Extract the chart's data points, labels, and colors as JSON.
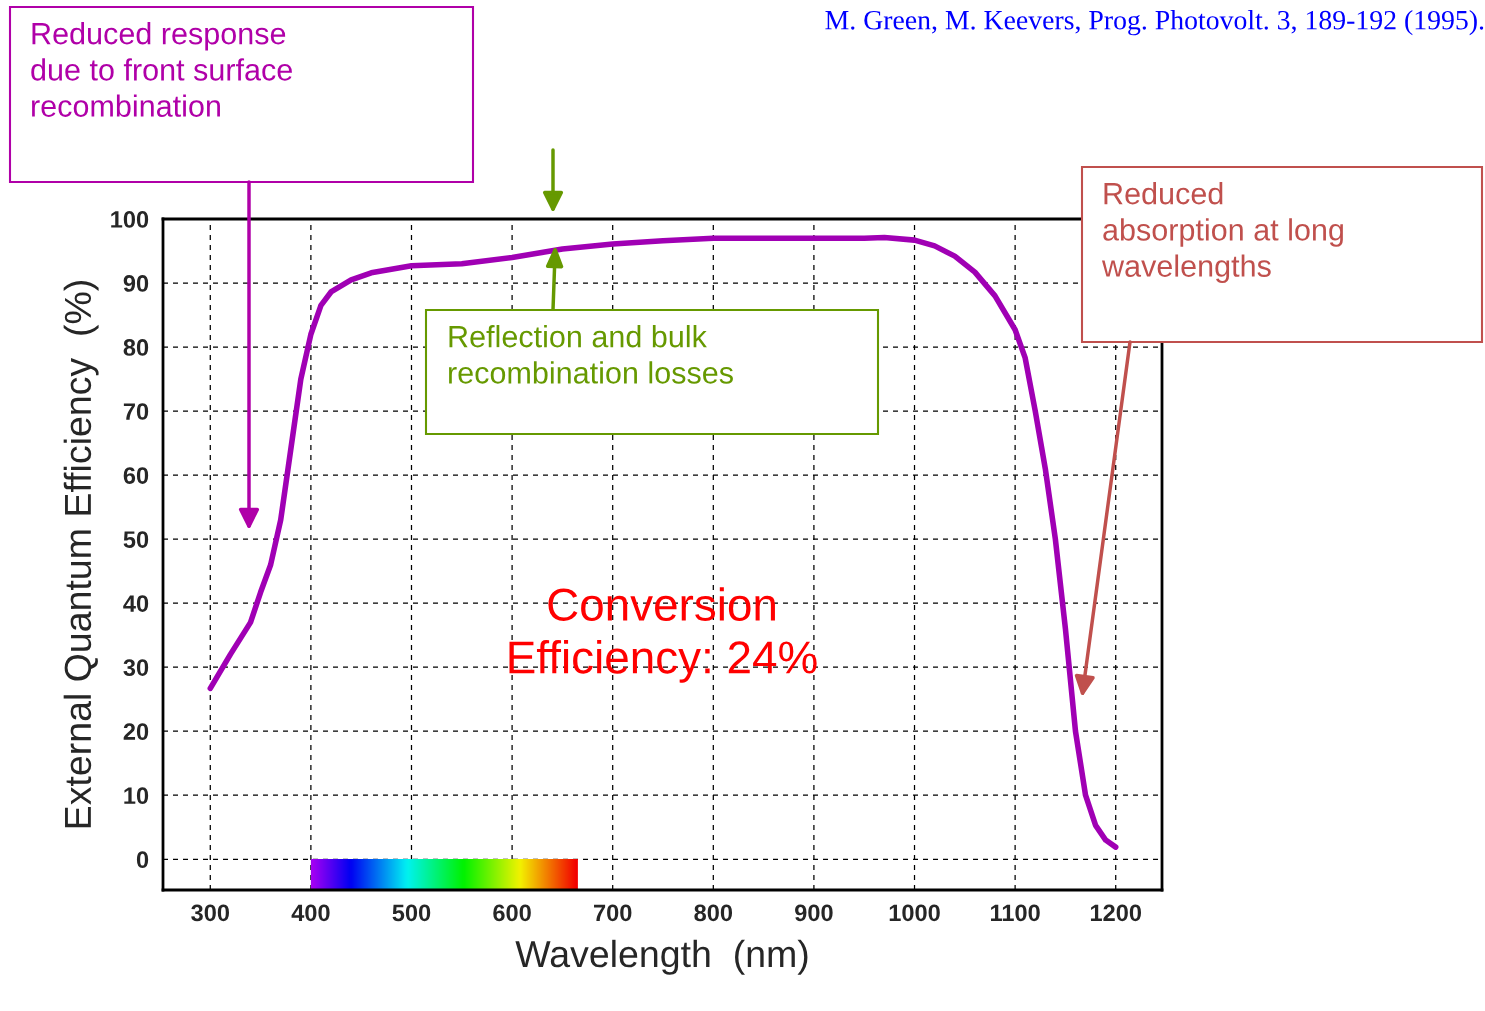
{
  "chart_data": {
    "type": "line",
    "xlabel": "Wavelength  (nm)",
    "ylabel": "External Quantum Efficiency  (%)",
    "xlim": [
      253,
      1246
    ],
    "ylim": [
      -4.8,
      100
    ],
    "xticks": [
      300,
      400,
      500,
      600,
      700,
      800,
      900,
      1000,
      1100,
      1200
    ],
    "yticks": [
      0,
      10,
      20,
      30,
      40,
      50,
      60,
      70,
      80,
      90,
      100
    ],
    "grid": true,
    "line_style": "solid",
    "marker": "none",
    "series": [
      {
        "color": "#a000b4",
        "x": [
          300,
          320,
          340,
          350,
          360,
          370,
          380,
          390,
          400,
          410,
          420,
          440,
          460,
          500,
          550,
          600,
          650,
          700,
          750,
          800,
          850,
          900,
          950,
          970,
          1000,
          1020,
          1040,
          1060,
          1080,
          1100,
          1110,
          1120,
          1130,
          1140,
          1150,
          1160,
          1170,
          1180,
          1190,
          1200
        ],
        "values": [
          26.7,
          32,
          37,
          41.7,
          46,
          53,
          64,
          75,
          82,
          86.5,
          88.6,
          90.5,
          91.6,
          92.7,
          93,
          94,
          95.3,
          96.1,
          96.6,
          97,
          97,
          97,
          97,
          97.1,
          96.7,
          95.8,
          94.2,
          91.7,
          88,
          82.7,
          78.3,
          70,
          61,
          50,
          36,
          20,
          10,
          5.3,
          3,
          1.9
        ]
      }
    ],
    "annotations": [
      "Reduced response\ndue to front surface\nrecombination",
      {
        "text": "Reflection and bulk\nrecombination losses",
        "x": 643,
        "y": 95.9
      },
      "Reduced\nabsorption at long\nwavelengths",
      "Conversion\nEfficiency: 24%",
      "M. Green, M. Keevers, Prog. Photovolt. 3, 189-192 (1995)."
    ]
  }
}
